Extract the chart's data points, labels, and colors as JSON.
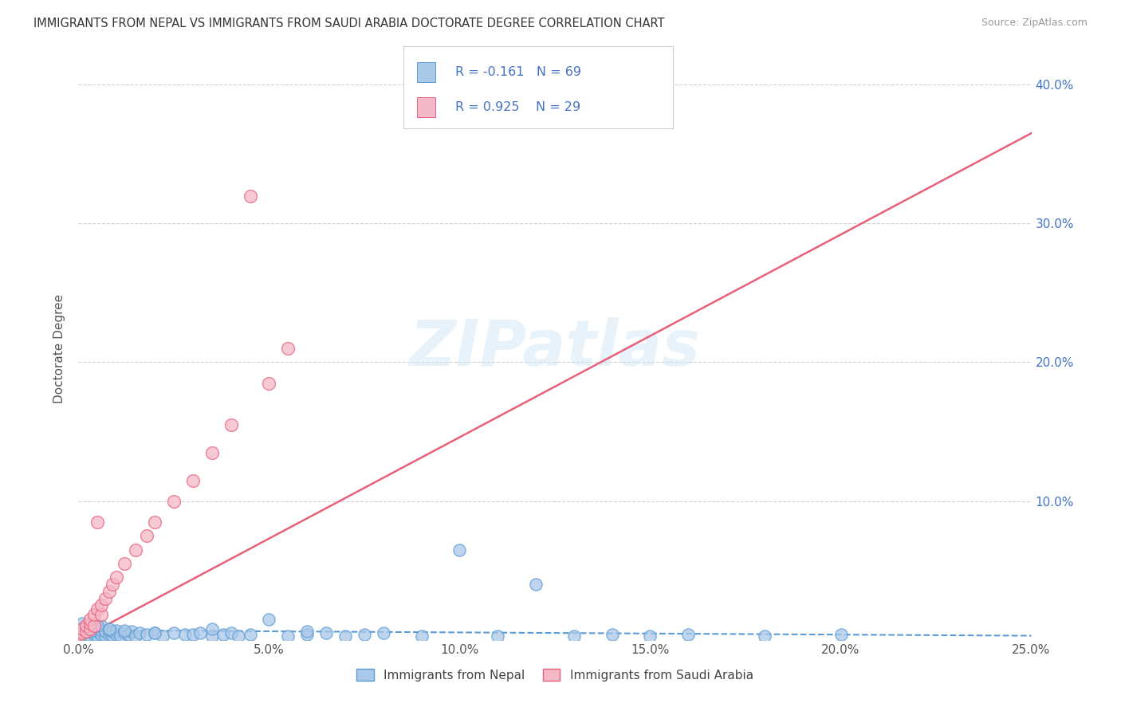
{
  "title": "IMMIGRANTS FROM NEPAL VS IMMIGRANTS FROM SAUDI ARABIA DOCTORATE DEGREE CORRELATION CHART",
  "source": "Source: ZipAtlas.com",
  "ylabel": "Doctorate Degree",
  "xlim": [
    0.0,
    0.25
  ],
  "ylim": [
    0.0,
    0.42
  ],
  "x_tick_vals": [
    0.0,
    0.05,
    0.1,
    0.15,
    0.2,
    0.25
  ],
  "x_tick_labels": [
    "0.0%",
    "5.0%",
    "10.0%",
    "15.0%",
    "20.0%",
    "25.0%"
  ],
  "y_tick_vals": [
    0.0,
    0.1,
    0.2,
    0.3,
    0.4
  ],
  "y_tick_labels": [
    "",
    "10.0%",
    "20.0%",
    "30.0%",
    "40.0%"
  ],
  "nepal_color": "#aac8e8",
  "saudi_color": "#f4b8c8",
  "nepal_edge_color": "#5b9bd5",
  "saudi_edge_color": "#e8607a",
  "nepal_line_color": "#5b9bd5",
  "saudi_line_color": "#e8607a",
  "R_nepal": -0.161,
  "N_nepal": 69,
  "R_saudi": 0.925,
  "N_saudi": 29,
  "watermark": "ZIPatlas",
  "legend_text_color": "#4472c4",
  "legend_entries": [
    "Immigrants from Nepal",
    "Immigrants from Saudi Arabia"
  ],
  "nepal_x": [
    0.001,
    0.001,
    0.002,
    0.002,
    0.002,
    0.003,
    0.003,
    0.003,
    0.004,
    0.004,
    0.004,
    0.005,
    0.005,
    0.005,
    0.006,
    0.006,
    0.006,
    0.007,
    0.007,
    0.008,
    0.008,
    0.009,
    0.009,
    0.01,
    0.01,
    0.011,
    0.012,
    0.013,
    0.014,
    0.015,
    0.016,
    0.018,
    0.02,
    0.022,
    0.025,
    0.028,
    0.03,
    0.032,
    0.035,
    0.038,
    0.04,
    0.042,
    0.045,
    0.05,
    0.055,
    0.06,
    0.065,
    0.07,
    0.075,
    0.08,
    0.09,
    0.1,
    0.11,
    0.12,
    0.13,
    0.14,
    0.15,
    0.16,
    0.18,
    0.2,
    0.001,
    0.002,
    0.003,
    0.005,
    0.008,
    0.012,
    0.02,
    0.035,
    0.06
  ],
  "nepal_y": [
    0.005,
    0.008,
    0.004,
    0.007,
    0.01,
    0.003,
    0.006,
    0.009,
    0.004,
    0.007,
    0.011,
    0.003,
    0.006,
    0.009,
    0.004,
    0.007,
    0.01,
    0.003,
    0.006,
    0.004,
    0.007,
    0.003,
    0.006,
    0.004,
    0.007,
    0.003,
    0.005,
    0.004,
    0.006,
    0.003,
    0.005,
    0.004,
    0.005,
    0.003,
    0.005,
    0.004,
    0.004,
    0.005,
    0.003,
    0.004,
    0.005,
    0.003,
    0.004,
    0.015,
    0.003,
    0.004,
    0.005,
    0.003,
    0.004,
    0.005,
    0.003,
    0.065,
    0.003,
    0.04,
    0.003,
    0.004,
    0.003,
    0.004,
    0.003,
    0.004,
    0.012,
    0.008,
    0.006,
    0.01,
    0.008,
    0.007,
    0.005,
    0.008,
    0.006
  ],
  "saudi_x": [
    0.0,
    0.001,
    0.001,
    0.002,
    0.002,
    0.003,
    0.003,
    0.003,
    0.004,
    0.004,
    0.005,
    0.005,
    0.006,
    0.006,
    0.007,
    0.008,
    0.009,
    0.01,
    0.012,
    0.015,
    0.018,
    0.02,
    0.025,
    0.03,
    0.035,
    0.04,
    0.045,
    0.05,
    0.055
  ],
  "saudi_y": [
    0.004,
    0.005,
    0.008,
    0.006,
    0.01,
    0.008,
    0.012,
    0.015,
    0.01,
    0.018,
    0.085,
    0.022,
    0.018,
    0.025,
    0.03,
    0.035,
    0.04,
    0.045,
    0.055,
    0.065,
    0.075,
    0.085,
    0.1,
    0.115,
    0.135,
    0.155,
    0.32,
    0.185,
    0.21
  ],
  "nepal_trend_x": [
    0.0,
    0.25
  ],
  "nepal_trend_y": [
    0.007,
    0.003
  ],
  "saudi_trend_x": [
    0.0,
    0.25
  ],
  "saudi_trend_y": [
    0.0,
    0.365
  ]
}
